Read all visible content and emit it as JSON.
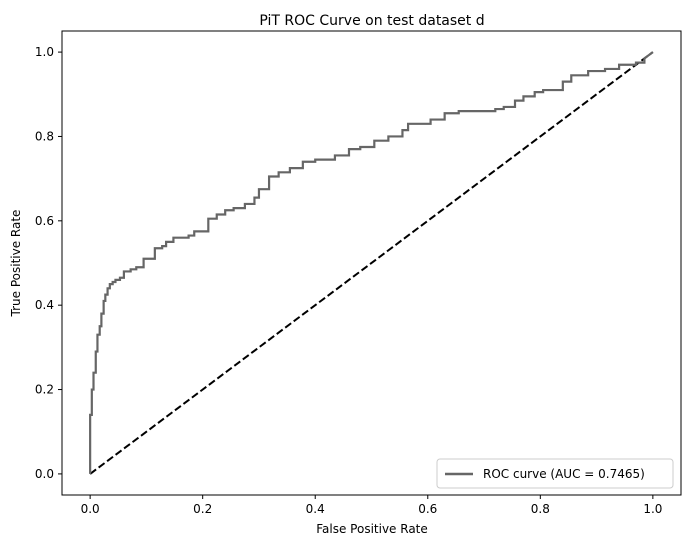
{
  "chart_data": {
    "type": "line",
    "title": "PiT ROC Curve on test dataset d",
    "xlabel": "False Positive Rate",
    "ylabel": "True Positive Rate",
    "xlim": [
      -0.05,
      1.05
    ],
    "ylim": [
      -0.05,
      1.05
    ],
    "xticks": [
      "0.0",
      "0.2",
      "0.4",
      "0.6",
      "0.8",
      "1.0"
    ],
    "yticks": [
      "0.0",
      "0.2",
      "0.4",
      "0.6",
      "0.8",
      "1.0"
    ],
    "xtick_values": [
      0.0,
      0.2,
      0.4,
      0.6,
      0.8,
      1.0
    ],
    "ytick_values": [
      0.0,
      0.2,
      0.4,
      0.6,
      0.8,
      1.0
    ],
    "grid": false,
    "legend_position": "lower right",
    "series": [
      {
        "name": "ROC curve (AUC = 0.7465)",
        "color": "#666666",
        "style": "solid",
        "x": [
          0.0,
          0.0,
          0.003,
          0.003,
          0.006,
          0.006,
          0.01,
          0.01,
          0.013,
          0.013,
          0.017,
          0.017,
          0.02,
          0.02,
          0.024,
          0.024,
          0.027,
          0.027,
          0.031,
          0.031,
          0.035,
          0.035,
          0.04,
          0.04,
          0.045,
          0.045,
          0.053,
          0.053,
          0.06,
          0.06,
          0.072,
          0.072,
          0.082,
          0.082,
          0.095,
          0.095,
          0.115,
          0.115,
          0.128,
          0.128,
          0.135,
          0.135,
          0.148,
          0.148,
          0.175,
          0.175,
          0.185,
          0.185,
          0.21,
          0.21,
          0.225,
          0.225,
          0.24,
          0.24,
          0.255,
          0.255,
          0.275,
          0.275,
          0.292,
          0.292,
          0.3,
          0.3,
          0.318,
          0.318,
          0.335,
          0.335,
          0.355,
          0.355,
          0.378,
          0.378,
          0.4,
          0.4,
          0.435,
          0.435,
          0.46,
          0.46,
          0.48,
          0.48,
          0.505,
          0.505,
          0.53,
          0.53,
          0.555,
          0.555,
          0.565,
          0.565,
          0.605,
          0.605,
          0.63,
          0.63,
          0.655,
          0.655,
          0.72,
          0.72,
          0.735,
          0.735,
          0.755,
          0.755,
          0.77,
          0.77,
          0.79,
          0.79,
          0.805,
          0.805,
          0.84,
          0.84,
          0.855,
          0.855,
          0.885,
          0.885,
          0.915,
          0.915,
          0.94,
          0.94,
          0.97,
          0.97,
          0.985,
          0.985,
          1.0
        ],
        "y": [
          0.0,
          0.14,
          0.14,
          0.2,
          0.2,
          0.24,
          0.24,
          0.29,
          0.29,
          0.33,
          0.33,
          0.35,
          0.35,
          0.38,
          0.38,
          0.41,
          0.41,
          0.425,
          0.425,
          0.44,
          0.44,
          0.45,
          0.45,
          0.455,
          0.455,
          0.46,
          0.46,
          0.465,
          0.465,
          0.48,
          0.48,
          0.485,
          0.485,
          0.49,
          0.49,
          0.51,
          0.51,
          0.535,
          0.535,
          0.54,
          0.54,
          0.55,
          0.55,
          0.56,
          0.56,
          0.565,
          0.565,
          0.575,
          0.575,
          0.605,
          0.605,
          0.615,
          0.615,
          0.625,
          0.625,
          0.63,
          0.63,
          0.64,
          0.64,
          0.655,
          0.655,
          0.675,
          0.675,
          0.705,
          0.705,
          0.715,
          0.715,
          0.725,
          0.725,
          0.74,
          0.74,
          0.745,
          0.745,
          0.755,
          0.755,
          0.77,
          0.77,
          0.775,
          0.775,
          0.79,
          0.79,
          0.8,
          0.8,
          0.815,
          0.815,
          0.83,
          0.83,
          0.84,
          0.84,
          0.855,
          0.855,
          0.86,
          0.86,
          0.865,
          0.865,
          0.87,
          0.87,
          0.885,
          0.885,
          0.895,
          0.895,
          0.905,
          0.905,
          0.91,
          0.91,
          0.93,
          0.93,
          0.945,
          0.945,
          0.955,
          0.955,
          0.96,
          0.96,
          0.97,
          0.97,
          0.975,
          0.975,
          0.985,
          1.0
        ]
      },
      {
        "name": "",
        "color": "#000000",
        "style": "dashed",
        "x": [
          0.0,
          1.0
        ],
        "y": [
          0.0,
          1.0
        ]
      }
    ]
  }
}
